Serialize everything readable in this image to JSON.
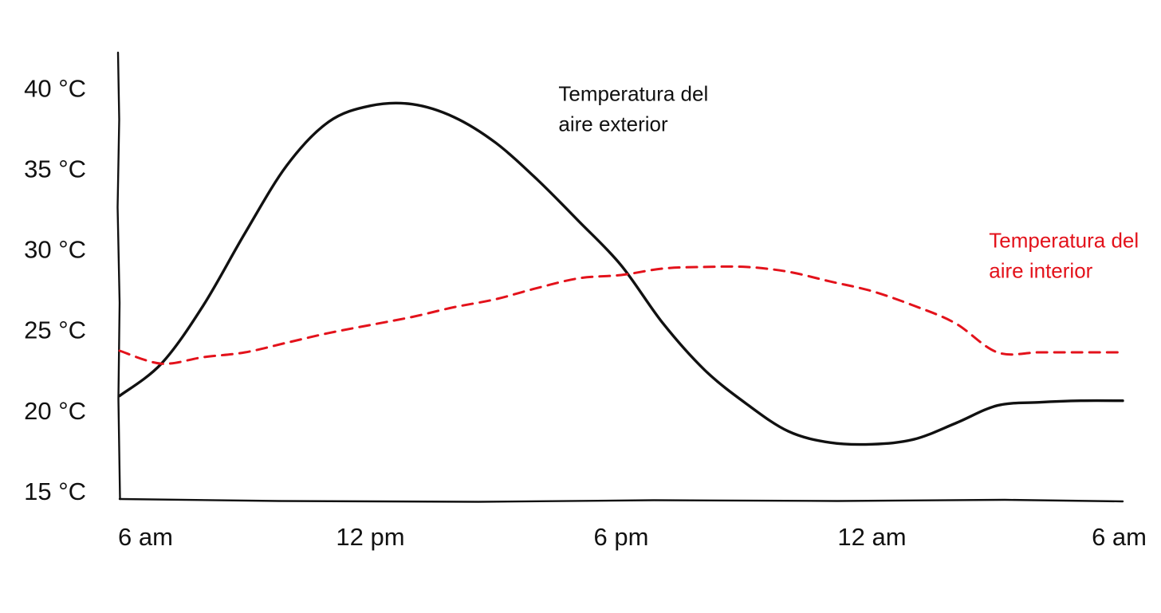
{
  "chart_data": {
    "type": "line",
    "title": "",
    "xlabel": "",
    "ylabel": "",
    "x": [
      6,
      7,
      8,
      9,
      10,
      11,
      12,
      13,
      14,
      15,
      16,
      17,
      18,
      19,
      20,
      21,
      22,
      23,
      24,
      25,
      26,
      27,
      28,
      29,
      30
    ],
    "x_ticks": [
      {
        "value": 6,
        "label": "6 am"
      },
      {
        "value": 12,
        "label": "12 pm"
      },
      {
        "value": 18,
        "label": "6 pm"
      },
      {
        "value": 24,
        "label": "12 am"
      },
      {
        "value": 30,
        "label": "6 am"
      }
    ],
    "y_ticks": [
      {
        "value": 15,
        "label": "15 °C"
      },
      {
        "value": 20,
        "label": "20 °C"
      },
      {
        "value": 25,
        "label": "25 °C"
      },
      {
        "value": 30,
        "label": "30 °C"
      },
      {
        "value": 35,
        "label": "35 °C"
      },
      {
        "value": 40,
        "label": "40 °C"
      }
    ],
    "xlim": [
      6,
      30
    ],
    "ylim": [
      14.5,
      42.2
    ],
    "grid": false,
    "legend": "none",
    "series": [
      {
        "name": "Temperatura del aire exterior",
        "color": "#111111",
        "style": "solid",
        "values": [
          20.9,
          22.9,
          26.5,
          31.0,
          35.2,
          37.9,
          38.9,
          39.0,
          38.2,
          36.6,
          34.3,
          31.7,
          29.0,
          25.4,
          22.5,
          20.4,
          18.7,
          18.0,
          17.9,
          18.2,
          19.2,
          20.3,
          20.5,
          20.6,
          20.6
        ],
        "label_lines": [
          "Temperatura del",
          "aire exterior"
        ],
        "label_anchor": {
          "x": 16.5,
          "y": 39.2
        }
      },
      {
        "name": "Temperatura del aire interior",
        "color": "#e3121b",
        "style": "dashed",
        "values": [
          23.7,
          22.9,
          23.3,
          23.6,
          24.2,
          24.8,
          25.3,
          25.8,
          26.4,
          26.9,
          27.6,
          28.2,
          28.4,
          28.8,
          28.9,
          28.9,
          28.6,
          28.0,
          27.4,
          26.5,
          25.4,
          23.6,
          23.6,
          23.6,
          23.6
        ],
        "label_lines": [
          "Temperatura del",
          "aire interior"
        ],
        "label_anchor": {
          "x": 26.8,
          "y": 30.1
        }
      }
    ]
  }
}
